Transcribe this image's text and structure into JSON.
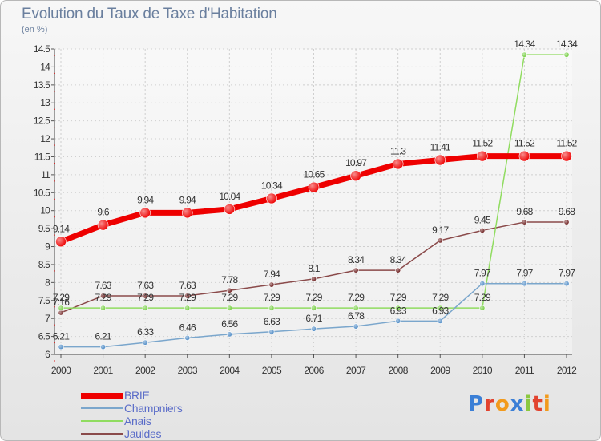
{
  "header": {
    "title": "Evolution du Taux de Taxe d'Habitation",
    "subtitle": "(en %)"
  },
  "brand": {
    "letters": [
      "P",
      "r",
      "o",
      "x",
      "i",
      "t",
      "i"
    ],
    "colors": [
      "#3b7fd6",
      "#e2432f",
      "#f29a1c",
      "#3b7fd6",
      "#8bc83f",
      "#e2432f",
      "#f29a1c"
    ]
  },
  "chart_data": {
    "type": "line",
    "title": "Evolution du Taux de Taxe d'Habitation",
    "ylabel": "(en %)",
    "xlabel": "",
    "x": [
      "2000",
      "2001",
      "2002",
      "2003",
      "2004",
      "2005",
      "2006",
      "2007",
      "2008",
      "2009",
      "2010",
      "2011",
      "2012"
    ],
    "ylim": [
      6,
      14.5
    ],
    "yticks": [
      6,
      6.5,
      7,
      7.5,
      8,
      8.5,
      9,
      9.5,
      10,
      10.5,
      11,
      11.5,
      12,
      12.5,
      13,
      13.5,
      14,
      14.5
    ],
    "ytick_labels": [
      "6",
      "6.5",
      "7",
      "7.5",
      "8",
      "8.5",
      "9",
      "9.5",
      "10",
      "10.5",
      "11",
      "11.5",
      "12",
      "12.5",
      "13",
      "13.5",
      "14",
      "14.5"
    ],
    "grid": true,
    "legend_position": "bottom-left",
    "series": [
      {
        "name": "BRIE",
        "color": "#ee0000",
        "marker_color": "#ee0000",
        "values": [
          9.14,
          9.6,
          9.94,
          9.94,
          10.04,
          10.34,
          10.65,
          10.97,
          11.3,
          11.41,
          11.52,
          11.52,
          11.52
        ],
        "labels": [
          "9.14",
          "9.6",
          "9.94",
          "9.94",
          "10.04",
          "10.34",
          "10.65",
          "10.97",
          "11.3",
          "11.41",
          "11.52",
          "11.52",
          "11.52"
        ]
      },
      {
        "name": "Champniers",
        "color": "#7aa6cc",
        "marker_color": "#4a88c4",
        "values": [
          6.21,
          6.21,
          6.33,
          6.46,
          6.56,
          6.63,
          6.71,
          6.78,
          6.93,
          6.93,
          7.97,
          7.97,
          7.97
        ],
        "labels": [
          "6.21",
          "6.21",
          "6.33",
          "6.46",
          "6.56",
          "6.63",
          "6.71",
          "6.78",
          "6.93",
          "6.93",
          "7.97",
          "7.97",
          "7.97"
        ]
      },
      {
        "name": "Anais",
        "color": "#90dc60",
        "marker_color": "#70cc3c",
        "values": [
          7.29,
          7.29,
          7.29,
          7.29,
          7.29,
          7.29,
          7.29,
          7.29,
          7.29,
          7.29,
          7.29,
          14.34,
          14.34
        ],
        "labels": [
          "7.29",
          "7.29",
          "7.29",
          "7.29",
          "7.29",
          "7.29",
          "7.29",
          "7.29",
          "7.29",
          "7.29",
          "7.29",
          "14.34",
          "14.34"
        ]
      },
      {
        "name": "Jauldes",
        "color": "#8a4a4a",
        "marker_color": "#6a1a1a",
        "values": [
          7.16,
          7.63,
          7.63,
          7.63,
          7.78,
          7.94,
          8.1,
          8.34,
          8.34,
          9.17,
          9.45,
          9.68,
          9.68
        ],
        "labels": [
          "7.16",
          "7.63",
          "7.63",
          "7.63",
          "7.78",
          "7.94",
          "8.1",
          "8.34",
          "8.34",
          "9.17",
          "9.45",
          "9.68",
          "9.68"
        ]
      }
    ]
  }
}
